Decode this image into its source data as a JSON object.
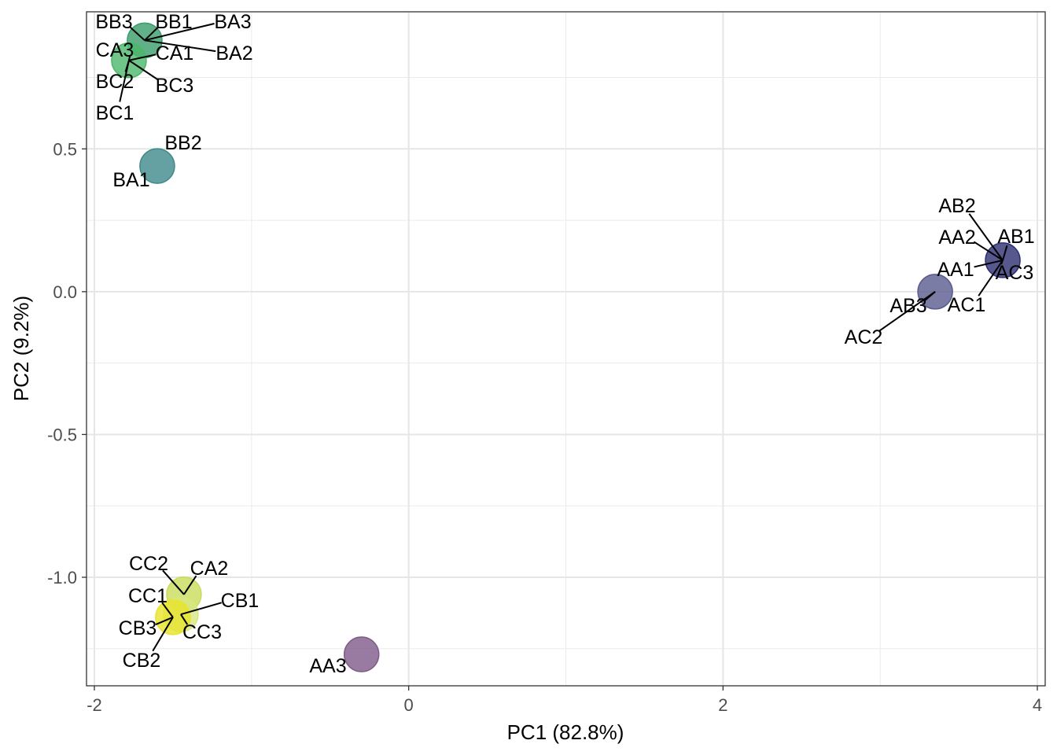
{
  "chart_data": {
    "type": "scatter",
    "xlabel": "PC1 (82.8%)",
    "ylabel": "PC2 (9.2%)",
    "xlim": [
      -2.05,
      4.05
    ],
    "ylim": [
      -1.38,
      0.98
    ],
    "x_ticks": [
      -2,
      0,
      2,
      4
    ],
    "x_tick_labels": [
      "-2",
      "0",
      "2",
      "4"
    ],
    "y_ticks": [
      -1.0,
      -0.5,
      0.0,
      0.5
    ],
    "y_tick_labels": [
      "-1.0",
      "-0.5",
      "0.0",
      "0.5"
    ],
    "grid": true,
    "legend": "none",
    "points": [
      {
        "label": "AB1",
        "x": 3.78,
        "y": 0.11,
        "color": "#2d2f72"
      },
      {
        "label": "AB2",
        "x": 3.78,
        "y": 0.11,
        "color": "#2d2f72"
      },
      {
        "label": "AA2",
        "x": 3.78,
        "y": 0.11,
        "color": "#2d2f72"
      },
      {
        "label": "AC3",
        "x": 3.78,
        "y": 0.11,
        "color": "#2d2f72"
      },
      {
        "label": "AA1",
        "x": 3.78,
        "y": 0.11,
        "color": "#2d2f72"
      },
      {
        "label": "AC1",
        "x": 3.78,
        "y": 0.11,
        "color": "#2d2f72"
      },
      {
        "label": "AB3",
        "x": 3.35,
        "y": 0.0,
        "color": "#5a5b8e"
      },
      {
        "label": "AC2",
        "x": 3.35,
        "y": 0.0,
        "color": "#5a5b8e"
      },
      {
        "label": "AA3",
        "x": -0.3,
        "y": -1.27,
        "color": "#7f5a8a"
      },
      {
        "label": "BB2",
        "x": -1.6,
        "y": 0.44,
        "color": "#3f8a8c"
      },
      {
        "label": "BA1",
        "x": -1.6,
        "y": 0.44,
        "color": "#3f8a8c"
      },
      {
        "label": "BB3",
        "x": -1.68,
        "y": 0.88,
        "color": "#3a9e6a"
      },
      {
        "label": "BB1",
        "x": -1.68,
        "y": 0.88,
        "color": "#3a9e6a"
      },
      {
        "label": "BA3",
        "x": -1.68,
        "y": 0.88,
        "color": "#3a9e6a"
      },
      {
        "label": "BA2",
        "x": -1.68,
        "y": 0.88,
        "color": "#3a9e6a"
      },
      {
        "label": "CA3",
        "x": -1.78,
        "y": 0.81,
        "color": "#4cb76a"
      },
      {
        "label": "CA1",
        "x": -1.78,
        "y": 0.81,
        "color": "#4cb76a"
      },
      {
        "label": "BC2",
        "x": -1.78,
        "y": 0.81,
        "color": "#4cb76a"
      },
      {
        "label": "BC3",
        "x": -1.78,
        "y": 0.81,
        "color": "#4cb76a"
      },
      {
        "label": "BC1",
        "x": -1.78,
        "y": 0.81,
        "color": "#4cb76a"
      },
      {
        "label": "CC2",
        "x": -1.43,
        "y": -1.06,
        "color": "#c9dc5a"
      },
      {
        "label": "CA2",
        "x": -1.43,
        "y": -1.06,
        "color": "#c9dc5a"
      },
      {
        "label": "CB1",
        "x": -1.45,
        "y": -1.13,
        "color": "#d7e780"
      },
      {
        "label": "CC3",
        "x": -1.45,
        "y": -1.13,
        "color": "#d7e780"
      },
      {
        "label": "CC1",
        "x": -1.5,
        "y": -1.14,
        "color": "#e8e42a"
      },
      {
        "label": "CB3",
        "x": -1.5,
        "y": -1.14,
        "color": "#e8e42a"
      },
      {
        "label": "CB2",
        "x": -1.5,
        "y": -1.14,
        "color": "#e8e42a"
      }
    ]
  }
}
